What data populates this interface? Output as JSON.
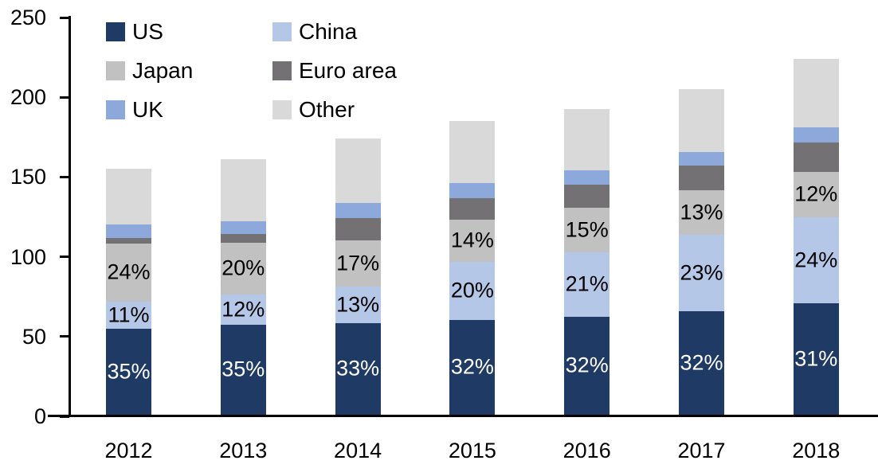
{
  "chart_data": {
    "type": "bar",
    "stacked": true,
    "title": "",
    "xlabel": "",
    "ylabel": "",
    "ylim": [
      0,
      250
    ],
    "yticks": [
      0,
      50,
      100,
      150,
      200,
      250
    ],
    "ytick_labels": [
      "0",
      "50",
      "100",
      "150",
      "200",
      "250"
    ],
    "grid": false,
    "legend_position": "top-left",
    "legend_columns": 2,
    "legend_order": [
      "US",
      "China",
      "Japan",
      "Euro area",
      "UK",
      "Other"
    ],
    "categories": [
      "2012",
      "2013",
      "2014",
      "2015",
      "2016",
      "2017",
      "2018"
    ],
    "totals": [
      154,
      160,
      173,
      184,
      192,
      204,
      223
    ],
    "series": [
      {
        "name": "US",
        "color": "#1f3a64",
        "values": [
          54,
          56.5,
          57.5,
          59.5,
          61.5,
          65,
          70
        ],
        "labels": [
          "35%",
          "35%",
          "33%",
          "32%",
          "32%",
          "32%",
          "31%"
        ],
        "label_color": "#ffffff"
      },
      {
        "name": "China",
        "color": "#b4c7e7",
        "values": [
          17,
          19,
          23,
          36.5,
          40.5,
          48,
          54
        ],
        "labels": [
          "11%",
          "12%",
          "13%",
          "20%",
          "21%",
          "23%",
          "24%"
        ],
        "label_color": "#000000"
      },
      {
        "name": "Japan",
        "color": "#c2c1c1",
        "values": [
          36.5,
          32.5,
          29,
          26.5,
          28,
          27.5,
          28
        ],
        "labels": [
          "24%",
          "20%",
          "17%",
          "14%",
          "15%",
          "13%",
          "12%"
        ],
        "label_color": "#000000"
      },
      {
        "name": "Euro area",
        "color": "#737173",
        "values": [
          3.5,
          5.5,
          14,
          13,
          14,
          15.5,
          18.5
        ],
        "labels": [
          "",
          "",
          "",
          "",
          "",
          "",
          ""
        ],
        "label_color": "#000000"
      },
      {
        "name": "UK",
        "color": "#8da9db",
        "values": [
          8.5,
          8,
          9.5,
          9.5,
          9,
          8.5,
          9.5
        ],
        "labels": [
          "",
          "",
          "",
          "",
          "",
          "",
          ""
        ],
        "label_color": "#000000"
      },
      {
        "name": "Other",
        "color": "#d9d9da",
        "values": [
          34.5,
          38.5,
          40,
          39,
          38.5,
          39.5,
          43
        ],
        "labels": [
          "",
          "",
          "",
          "",
          "",
          "",
          ""
        ],
        "label_color": "#000000"
      }
    ]
  }
}
